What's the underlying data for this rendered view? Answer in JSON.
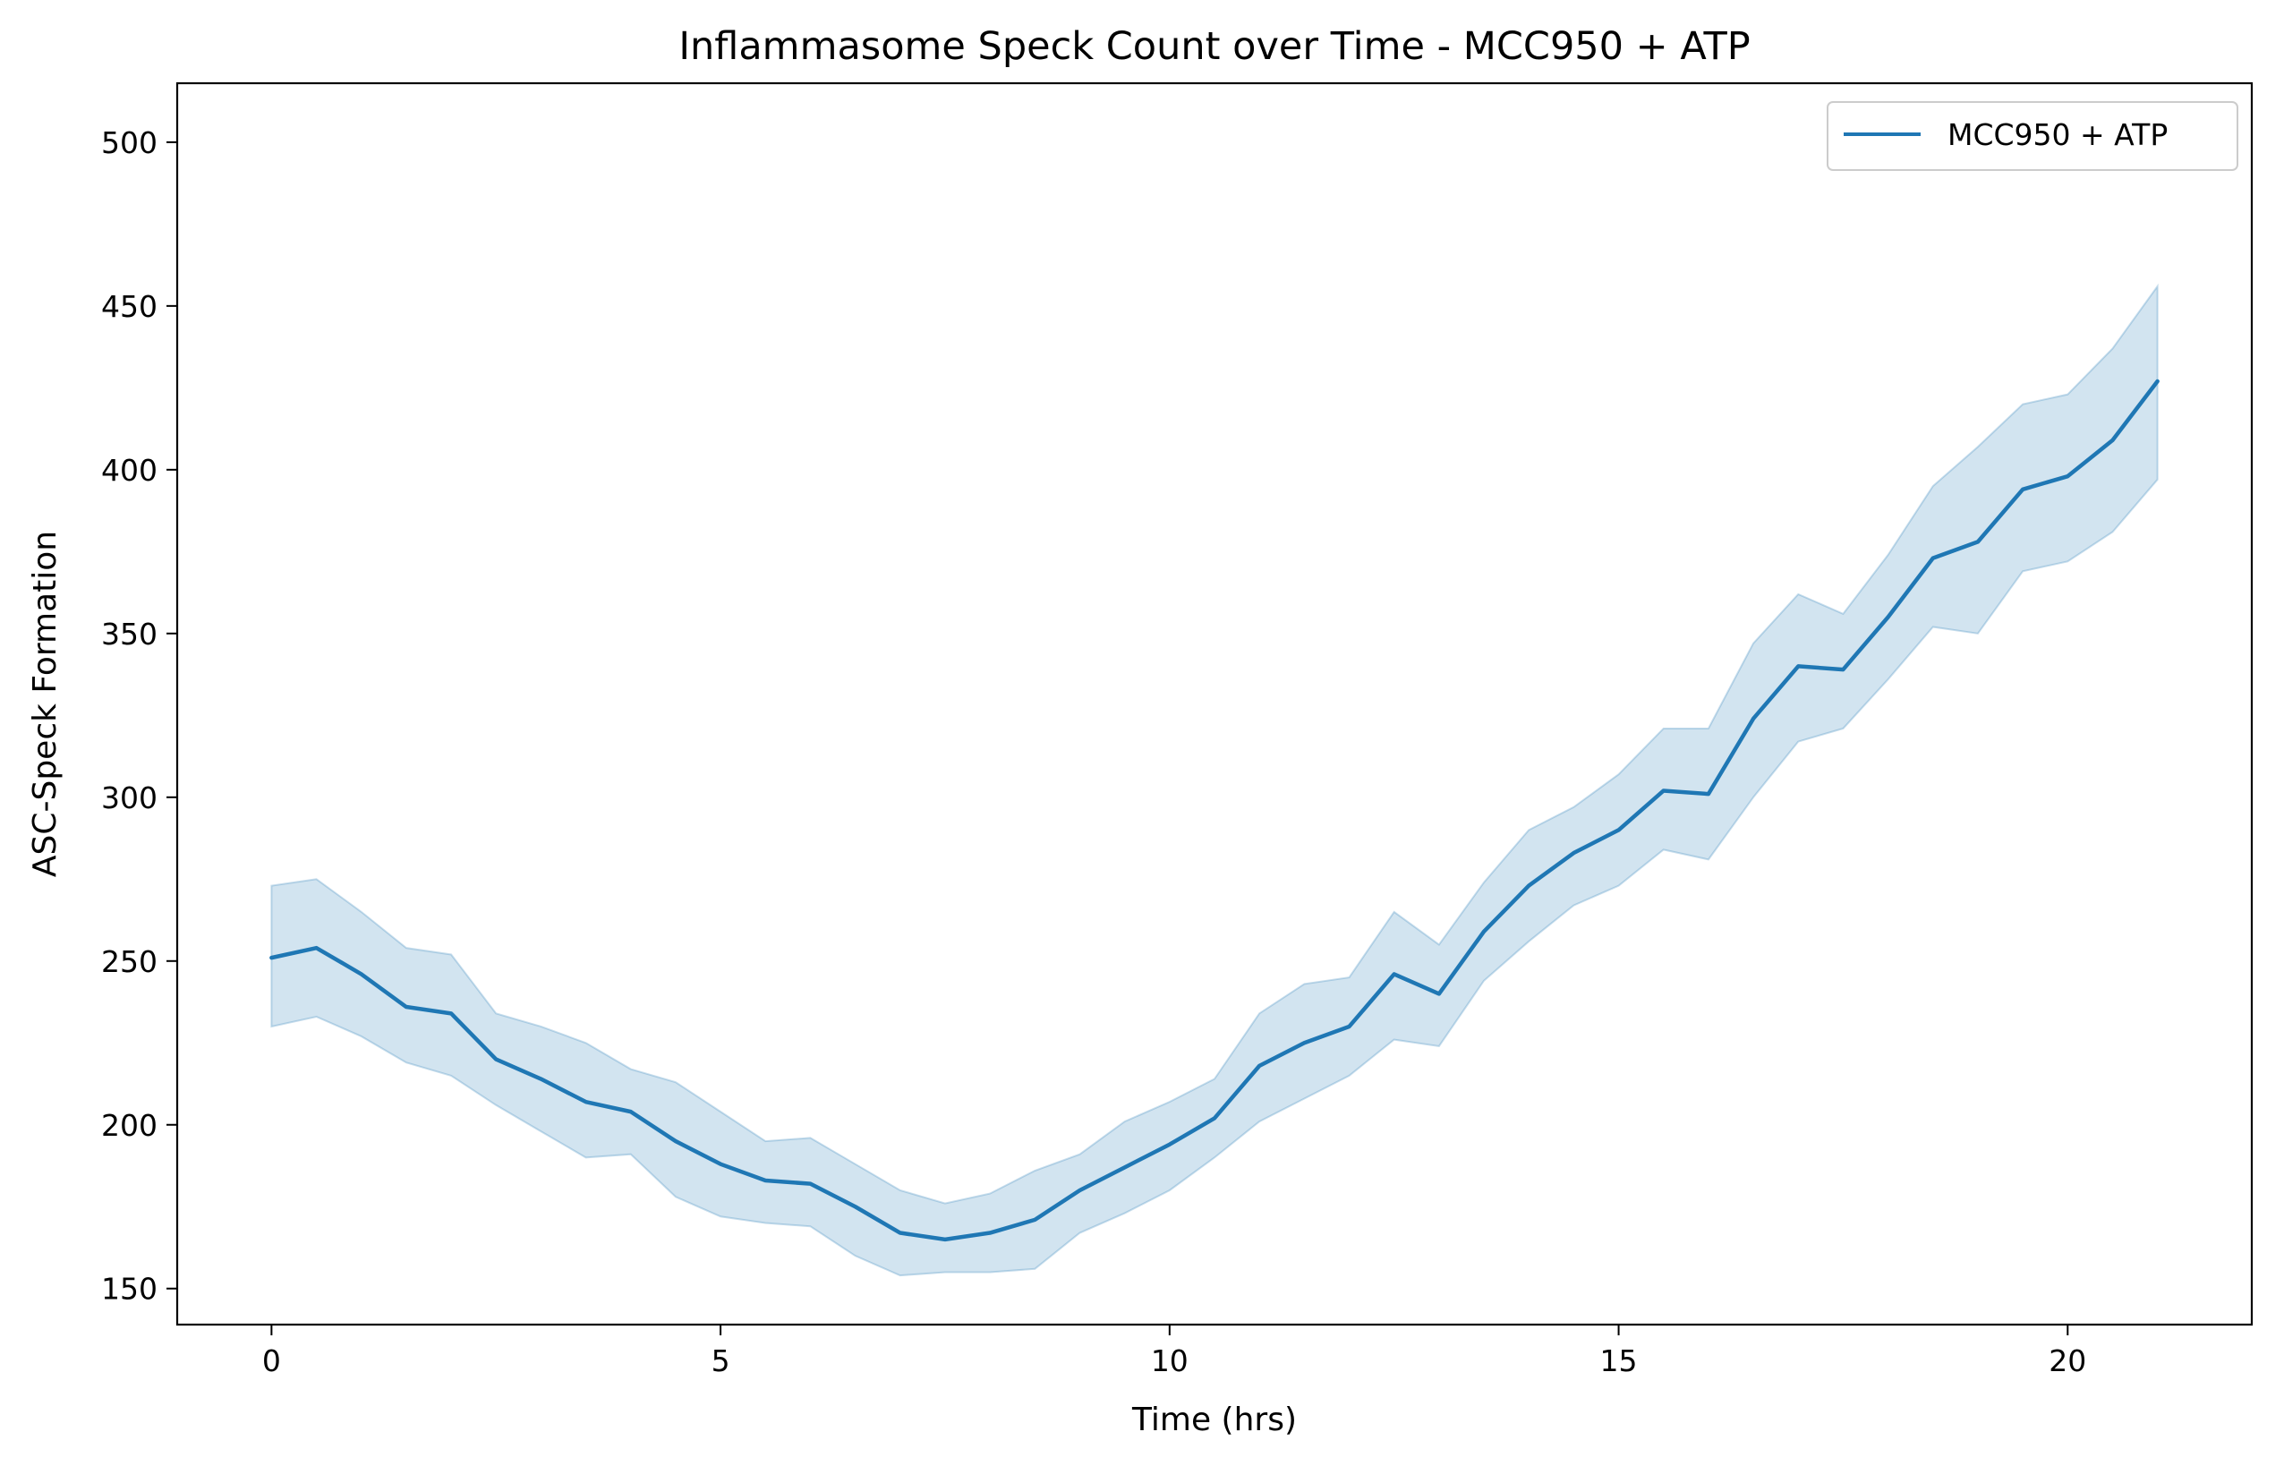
{
  "chart_data": {
    "type": "line",
    "title": "Inflammasome Speck Count over Time - MCC950 + ATP",
    "xlabel": "Time (hrs)",
    "ylabel": "ASC-Speck Formation",
    "xlim": [
      -1.05,
      22.05
    ],
    "ylim": [
      139,
      518
    ],
    "xticks": [
      0,
      5,
      10,
      15,
      20
    ],
    "yticks": [
      150,
      200,
      250,
      300,
      350,
      400,
      450,
      500
    ],
    "grid": false,
    "legend": "top-right",
    "line_color": "#1f77b4",
    "band_color": "#1f77b4",
    "band_opacity": 0.2,
    "series": [
      {
        "name": "MCC950 + ATP",
        "x": [
          0,
          0.5,
          1,
          1.5,
          2,
          2.5,
          3,
          3.5,
          4,
          4.5,
          5,
          5.5,
          6,
          6.5,
          7,
          7.5,
          8,
          8.5,
          9,
          9.5,
          10,
          10.5,
          11,
          11.5,
          12,
          12.5,
          13,
          13.5,
          14,
          14.5,
          15,
          15.5,
          16,
          16.5,
          17,
          17.5,
          18,
          18.5,
          19,
          19.5,
          20,
          20.5,
          21
        ],
        "y": [
          251,
          254,
          246,
          236,
          234,
          220,
          214,
          207,
          204,
          195,
          188,
          183,
          182,
          175,
          167,
          165,
          167,
          171,
          180,
          187,
          194,
          202,
          218,
          225,
          230,
          246,
          240,
          259,
          273,
          283,
          290,
          302,
          301,
          324,
          340,
          339,
          355,
          373,
          378,
          394,
          398,
          409,
          427
        ],
        "lower": [
          230,
          233,
          227,
          219,
          215,
          206,
          198,
          190,
          191,
          178,
          172,
          170,
          169,
          160,
          154,
          155,
          155,
          156,
          167,
          173,
          180,
          190,
          201,
          208,
          215,
          226,
          224,
          244,
          256,
          267,
          273,
          284,
          281,
          300,
          317,
          321,
          336,
          352,
          350,
          369,
          372,
          381,
          397
        ],
        "upper": [
          273,
          275,
          265,
          254,
          252,
          234,
          230,
          225,
          217,
          213,
          204,
          195,
          196,
          188,
          180,
          176,
          179,
          186,
          191,
          201,
          207,
          214,
          234,
          243,
          245,
          265,
          255,
          274,
          290,
          297,
          307,
          321,
          321,
          347,
          362,
          356,
          374,
          395,
          407,
          420,
          423,
          437,
          456
        ]
      }
    ]
  }
}
